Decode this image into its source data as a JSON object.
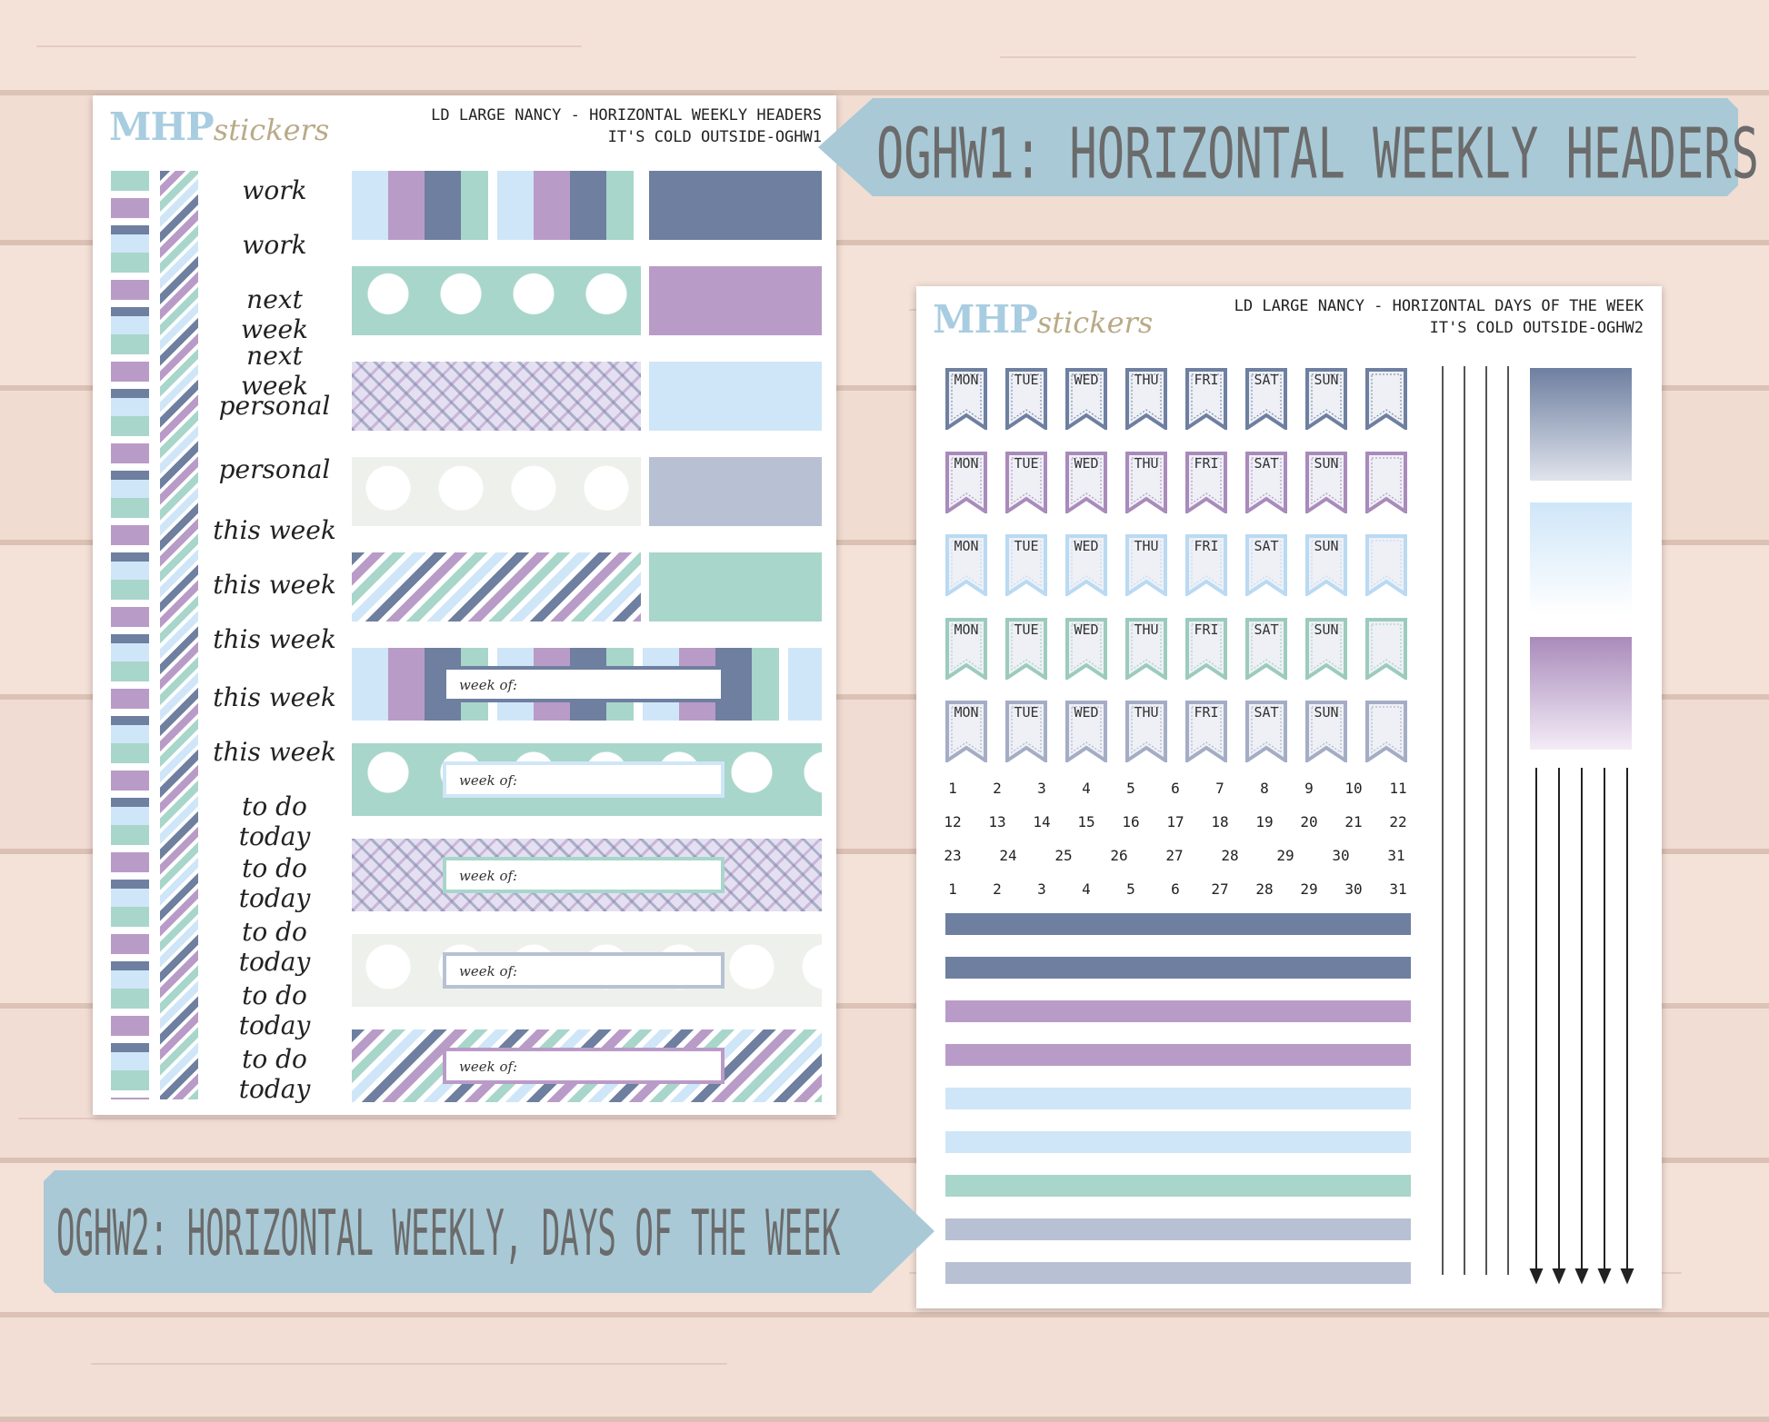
{
  "sheet1": {
    "logo_main": "MHP",
    "logo_script": "stickers",
    "title_line1": "LD LARGE NANCY - HORIZONTAL WEEKLY HEADERS",
    "title_line2": "IT'S COLD OUTSIDE-OGHW1",
    "labels": [
      "work",
      "work",
      "next week",
      "next week",
      "personal",
      "personal",
      "this week",
      "this week",
      "this week",
      "this week",
      "this week",
      "to do today",
      "to do today",
      "to do today",
      "to do today",
      "to do today"
    ],
    "week_of_label": "week of:",
    "solid_colors": [
      "#6e7fa0",
      "#b99bc8",
      "#cfe6f8",
      "#b8c1d3",
      "#a8d6ca"
    ]
  },
  "sheet2": {
    "logo_main": "MHP",
    "logo_script": "stickers",
    "title_line1": "LD LARGE NANCY - HORIZONTAL DAYS OF THE WEEK",
    "title_line2": "IT'S COLD OUTSIDE-OGHW2",
    "days": [
      "MON",
      "TUE",
      "WED",
      "THU",
      "FRI",
      "SAT",
      "SUN",
      ""
    ],
    "flag_row_colors": [
      "#6e7fa0",
      "#a98bbb",
      "#b9daf2",
      "#9ccbbd",
      "#a4adc4"
    ],
    "numbers": [
      [
        "1",
        "2",
        "3",
        "4",
        "5",
        "6",
        "7",
        "8",
        "9",
        "10",
        "11"
      ],
      [
        "12",
        "13",
        "14",
        "15",
        "16",
        "17",
        "18",
        "19",
        "20",
        "21",
        "22"
      ],
      [
        "23",
        "24",
        "25",
        "26",
        "27",
        "28",
        "29",
        "30",
        "31"
      ],
      [
        "1",
        "2",
        "3",
        "4",
        "5",
        "6",
        "27",
        "28",
        "29",
        "30",
        "31"
      ]
    ],
    "stripe_colors": [
      "#6e7fa0",
      "#6e7fa0",
      "#b99bc8",
      "#b99bc8",
      "#cfe6f8",
      "#cfe6f8",
      "#a8d6ca",
      "#b8c1d3",
      "#b8c1d3"
    ]
  },
  "tags": {
    "tag1": "OGHW1: HORIZONTAL WEEKLY HEADERS",
    "tag2": "OGHW2: HORIZONTAL WEEKLY, DAYS OF THE WEEK"
  }
}
